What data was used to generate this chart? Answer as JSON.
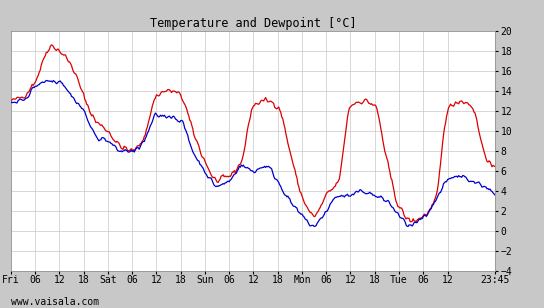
{
  "title": "Temperature and Dewpoint [°C]",
  "ylim": [
    -4,
    20
  ],
  "yticks": [
    -4,
    -2,
    0,
    2,
    4,
    6,
    8,
    10,
    12,
    14,
    16,
    18,
    20
  ],
  "watermark": "www.vaisala.com",
  "temp_color": "#dd0000",
  "dewp_color": "#0000cc",
  "bg_color": "#ffffff",
  "frame_color": "#c8c8c8",
  "grid_color": "#c8c8c8",
  "line_width": 0.9,
  "xtick_labels": [
    "Fri",
    "06",
    "12",
    "18",
    "Sat",
    "06",
    "12",
    "18",
    "Sun",
    "06",
    "12",
    "18",
    "Mon",
    "06",
    "12",
    "18",
    "Tue",
    "06",
    "12",
    "23:45"
  ],
  "xtick_positions": [
    0,
    6,
    12,
    18,
    24,
    30,
    36,
    42,
    48,
    54,
    60,
    66,
    72,
    78,
    84,
    90,
    96,
    102,
    108,
    119.75
  ],
  "figsize": [
    5.44,
    3.08
  ],
  "dpi": 100
}
